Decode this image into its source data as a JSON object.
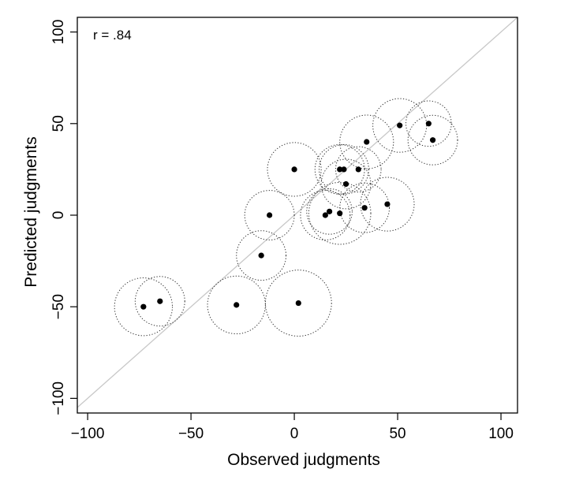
{
  "chart_data": {
    "type": "scatter",
    "xlabel": "Observed judgments",
    "ylabel": "Predicted judgments",
    "xlim": [
      -105,
      108
    ],
    "ylim": [
      -108,
      108
    ],
    "xticks": [
      -100,
      -50,
      0,
      50,
      100
    ],
    "yticks": [
      -100,
      -50,
      0,
      50,
      100
    ],
    "xtick_labels": [
      "−100",
      "−50",
      "0",
      "50",
      "100"
    ],
    "ytick_labels": [
      "−100",
      "−50",
      "0",
      "50",
      "100"
    ],
    "annotation": "r = .84",
    "grid": false,
    "reference_line": "identity",
    "colors": {
      "points": "#000000",
      "circles": "#333333",
      "diagonal": "#c8c8c8",
      "frame": "#000000"
    },
    "points": [
      {
        "x": -73,
        "y": -50,
        "r": 14
      },
      {
        "x": -65,
        "y": -47,
        "r": 12
      },
      {
        "x": -28,
        "y": -49,
        "r": 14
      },
      {
        "x": 2,
        "y": -48,
        "r": 16
      },
      {
        "x": -16,
        "y": -22,
        "r": 12
      },
      {
        "x": -12,
        "y": 0,
        "r": 12
      },
      {
        "x": 0,
        "y": 25,
        "r": 13
      },
      {
        "x": 15,
        "y": 0,
        "r": 12
      },
      {
        "x": 17,
        "y": 2,
        "r": 11
      },
      {
        "x": 22,
        "y": 1,
        "r": 15
      },
      {
        "x": 22,
        "y": 25,
        "r": 12
      },
      {
        "x": 24,
        "y": 25,
        "r": 12
      },
      {
        "x": 25,
        "y": 17,
        "r": 12
      },
      {
        "x": 31,
        "y": 25,
        "r": 11
      },
      {
        "x": 34,
        "y": 4,
        "r": 12
      },
      {
        "x": 35,
        "y": 40,
        "r": 13
      },
      {
        "x": 45,
        "y": 6,
        "r": 13
      },
      {
        "x": 51,
        "y": 49,
        "r": 13
      },
      {
        "x": 65,
        "y": 50,
        "r": 11
      },
      {
        "x": 67,
        "y": 41,
        "r": 12
      }
    ]
  }
}
